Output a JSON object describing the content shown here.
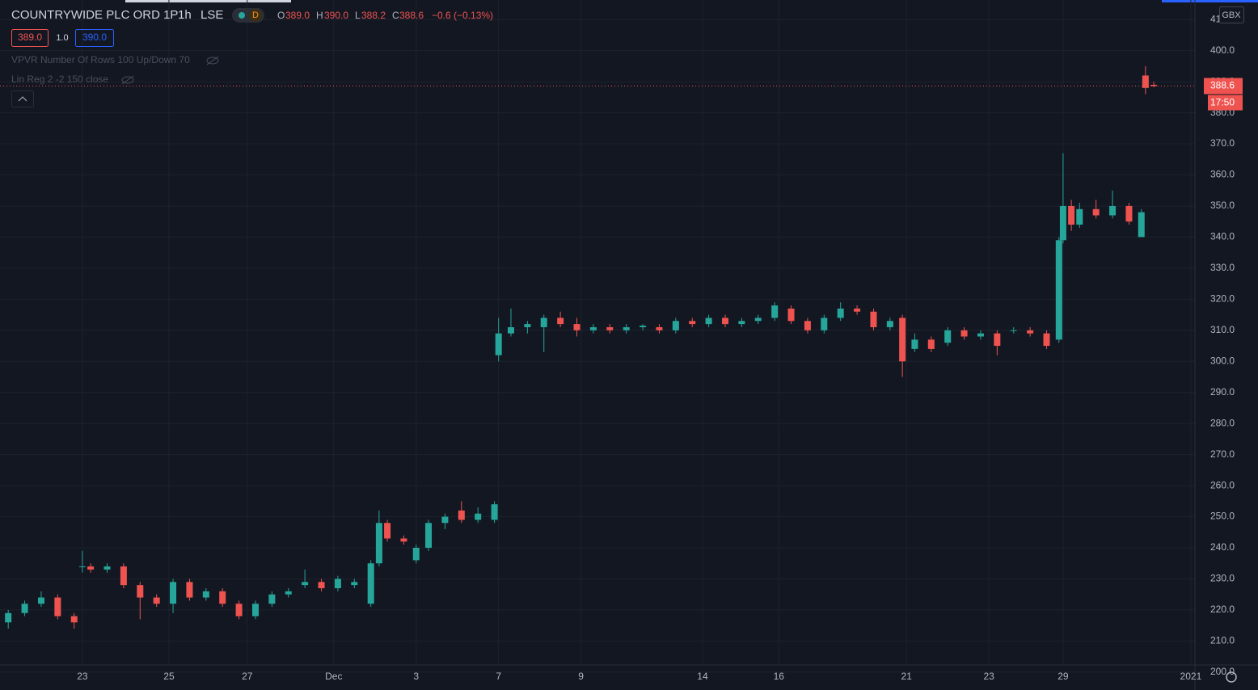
{
  "header": {
    "symbol": "COUNTRYWIDE PLC ORD 1P",
    "interval": "1h",
    "exchange": "LSE",
    "badge": "D",
    "o_label": "O",
    "o": "389.0",
    "h_label": "H",
    "h": "390.0",
    "l_label": "L",
    "l": "388.2",
    "c_label": "C",
    "c": "388.6",
    "change": "−0.6 (−0.13%)",
    "bid": "389.0",
    "spread": "1.0",
    "ask": "390.0",
    "indicators": [
      "VPVR Number Of Rows 100 Up/Down 70",
      "Lin Reg 2 -2 150 close"
    ]
  },
  "chart_data": {
    "type": "candlestick",
    "currency": "GBX",
    "up_color": "#26a69a",
    "down_color": "#ef5350",
    "xlim": [
      0,
      290
    ],
    "xticks": [
      {
        "value": 20,
        "label": "23"
      },
      {
        "value": 41,
        "label": "25"
      },
      {
        "value": 60,
        "label": "27"
      },
      {
        "value": 81,
        "label": "Dec"
      },
      {
        "value": 101,
        "label": "3"
      },
      {
        "value": 121,
        "label": "7"
      },
      {
        "value": 141,
        "label": "9"
      },
      {
        "value": 170.5,
        "label": "14"
      },
      {
        "value": 189,
        "label": "16"
      },
      {
        "value": 220,
        "label": "21"
      },
      {
        "value": 240,
        "label": "23"
      },
      {
        "value": 258,
        "label": "29"
      },
      {
        "value": 289,
        "label": "2021"
      }
    ],
    "ylim": [
      202.3,
      416.3
    ],
    "yticks": [
      {
        "value": 200,
        "label": "200.0"
      },
      {
        "value": 210,
        "label": "210.0"
      },
      {
        "value": 220,
        "label": "220.0"
      },
      {
        "value": 230,
        "label": "230.0"
      },
      {
        "value": 240,
        "label": "240.0"
      },
      {
        "value": 250,
        "label": "250.0"
      },
      {
        "value": 260,
        "label": "260.0"
      },
      {
        "value": 270,
        "label": "270.0"
      },
      {
        "value": 280,
        "label": "280.0"
      },
      {
        "value": 290,
        "label": "290.0"
      },
      {
        "value": 300,
        "label": "300.0"
      },
      {
        "value": 310,
        "label": "310.0"
      },
      {
        "value": 320,
        "label": "320.0"
      },
      {
        "value": 330,
        "label": "330.0"
      },
      {
        "value": 340,
        "label": "340.0"
      },
      {
        "value": 350,
        "label": "350.0"
      },
      {
        "value": 360,
        "label": "360.0"
      },
      {
        "value": 370,
        "label": "370.0"
      },
      {
        "value": 380,
        "label": "380.0"
      },
      {
        "value": 390,
        "label": "390.0"
      },
      {
        "value": 400,
        "label": "400.0"
      },
      {
        "value": 410,
        "label": "410.0"
      }
    ],
    "last_price": 388.6,
    "countdown": "17:50",
    "candles": [
      [
        2,
        216,
        220,
        214,
        219
      ],
      [
        6,
        219,
        223,
        218,
        222
      ],
      [
        10,
        222,
        226,
        221,
        224
      ],
      [
        14,
        224,
        225,
        217,
        218
      ],
      [
        18,
        218,
        219,
        214,
        216
      ],
      [
        20,
        234,
        239,
        232,
        234
      ],
      [
        22,
        234,
        235,
        232,
        233
      ],
      [
        26,
        233,
        235,
        232,
        234
      ],
      [
        30,
        234,
        235,
        227,
        228
      ],
      [
        34,
        228,
        229,
        217,
        224
      ],
      [
        38,
        224,
        225,
        221,
        222
      ],
      [
        42,
        222,
        230,
        219,
        229
      ],
      [
        46,
        229,
        230,
        223,
        224
      ],
      [
        50,
        224,
        227,
        223,
        226
      ],
      [
        54,
        226,
        227,
        221,
        222
      ],
      [
        58,
        222,
        223,
        217,
        218
      ],
      [
        62,
        218,
        223,
        217,
        222
      ],
      [
        66,
        222,
        226,
        221,
        225
      ],
      [
        70,
        225,
        227,
        224,
        226
      ],
      [
        74,
        228,
        233,
        227,
        229
      ],
      [
        78,
        229,
        230,
        226,
        227
      ],
      [
        82,
        227,
        231,
        226,
        230
      ],
      [
        86,
        228,
        230,
        227,
        229
      ],
      [
        90,
        222,
        236,
        221,
        235
      ],
      [
        92,
        235,
        252,
        234,
        248
      ],
      [
        94,
        248,
        249,
        242,
        243
      ],
      [
        98,
        243,
        244,
        241,
        242
      ],
      [
        101,
        236,
        241,
        235,
        240
      ],
      [
        104,
        240,
        249,
        239,
        248
      ],
      [
        108,
        248,
        251,
        246,
        250
      ],
      [
        112,
        252,
        255,
        248,
        249
      ],
      [
        116,
        249,
        253,
        248,
        251
      ],
      [
        120,
        249,
        255,
        248,
        254
      ],
      [
        121,
        302,
        314,
        300,
        309
      ],
      [
        124,
        309,
        317,
        308,
        311
      ],
      [
        128,
        311,
        313,
        309,
        312
      ],
      [
        132,
        311,
        315,
        303,
        314
      ],
      [
        136,
        314,
        316,
        311,
        312
      ],
      [
        140,
        312,
        314,
        308,
        310
      ],
      [
        144,
        310,
        312,
        309,
        311
      ],
      [
        148,
        311,
        312,
        309,
        310
      ],
      [
        152,
        310,
        312,
        309,
        311
      ],
      [
        156,
        311,
        312,
        310,
        311.5
      ],
      [
        160,
        311,
        312,
        309,
        310
      ],
      [
        164,
        310,
        314,
        309,
        313
      ],
      [
        168,
        313,
        314,
        311,
        312
      ],
      [
        172,
        312,
        315,
        311,
        314
      ],
      [
        176,
        314,
        315,
        311,
        312
      ],
      [
        180,
        312,
        314,
        311,
        313
      ],
      [
        184,
        313,
        315,
        312,
        314
      ],
      [
        188,
        314,
        319,
        313,
        318
      ],
      [
        192,
        317,
        318,
        312,
        313
      ],
      [
        196,
        313,
        314,
        309,
        310
      ],
      [
        200,
        310,
        315,
        309,
        314
      ],
      [
        204,
        314,
        319,
        313,
        317
      ],
      [
        208,
        317,
        318,
        315,
        316
      ],
      [
        212,
        316,
        317,
        310,
        311
      ],
      [
        216,
        311,
        314,
        310,
        313
      ],
      [
        219,
        314,
        315,
        295,
        300
      ],
      [
        222,
        304,
        309,
        303,
        307
      ],
      [
        226,
        307,
        308,
        303,
        304
      ],
      [
        230,
        306,
        311,
        305,
        310
      ],
      [
        234,
        310,
        311,
        307,
        308
      ],
      [
        238,
        308,
        310,
        307,
        309
      ],
      [
        242,
        309,
        310,
        302,
        305
      ],
      [
        246,
        310,
        311,
        309,
        310
      ],
      [
        250,
        310,
        311,
        308,
        309
      ],
      [
        254,
        309,
        310,
        304,
        305
      ],
      [
        257,
        307,
        340,
        306,
        339
      ],
      [
        258,
        339,
        367,
        338,
        350
      ],
      [
        260,
        350,
        352,
        342,
        344
      ],
      [
        262,
        344,
        351,
        343,
        349
      ],
      [
        266,
        349,
        352,
        346,
        347
      ],
      [
        270,
        347,
        355,
        346,
        350
      ],
      [
        274,
        350,
        351,
        344,
        345
      ],
      [
        277,
        340,
        349,
        340,
        348
      ],
      [
        278,
        392,
        395,
        386,
        388
      ],
      [
        280,
        389.0,
        390.0,
        388.2,
        388.6
      ]
    ]
  }
}
